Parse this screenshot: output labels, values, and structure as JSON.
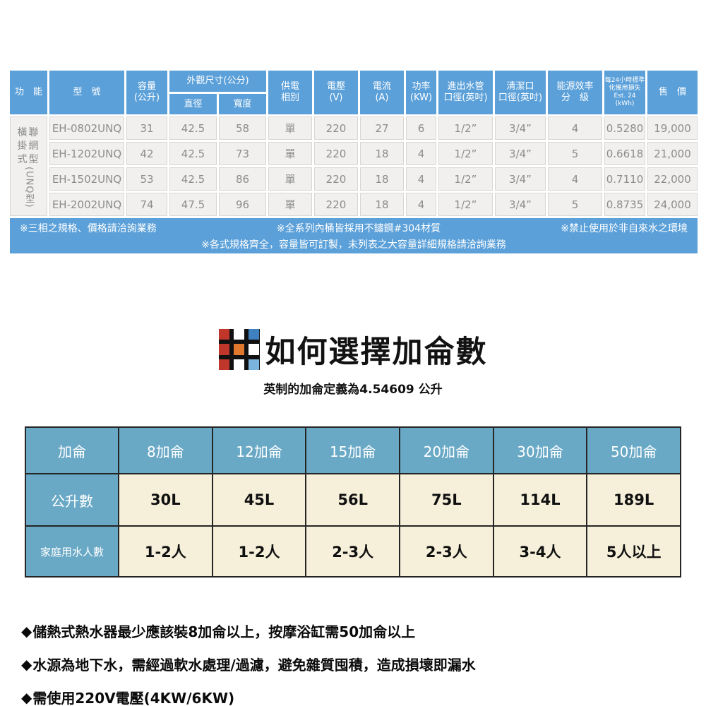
{
  "colors": {
    "spec_header_blue": "#5ba0d9",
    "spec_cell_bg": "#f1f0ef",
    "spec_text_gray": "#8c8c8c",
    "gallon_header_blue": "#6aa9c6",
    "gallon_cell_cream": "#f6f0da",
    "logo_red": "#c0362b",
    "logo_orange": "#e0792e",
    "logo_blue": "#3f80c0",
    "logo_light_blue": "#7ab4de"
  },
  "spec_table": {
    "header": {
      "function": "功　能",
      "model": "型　號",
      "capacity_l1": "容量",
      "capacity_l2": "(公升)",
      "dims": "外觀尺寸(公分)",
      "diameter": "直徑",
      "width": "寬度",
      "phase_l1": "供電",
      "phase_l2": "相別",
      "voltage_l1": "電壓",
      "voltage_l2": "(V)",
      "current_l1": "電流",
      "current_l2": "(A)",
      "power_l1": "功率",
      "power_l2": "(KW)",
      "inlet_l1": "進出水管",
      "inlet_l2": "口徑(英吋)",
      "clean_l1": "清潔口",
      "clean_l2": "口徑(英吋)",
      "energy_l1": "能源效率",
      "energy_l2": "分　級",
      "standby_l1": "每24小時標準",
      "standby_l2": "化備用損失",
      "standby_l3": "Est. 24 (kWh)",
      "price": "售　價"
    },
    "function_type": {
      "l1": "橫聯",
      "l2": "掛網",
      "l3": "式型",
      "vertical": "(UNQ型)"
    },
    "rows": [
      {
        "model": "EH-0802UNQ",
        "capacity": "31",
        "diameter": "42.5",
        "width": "58",
        "phase": "單",
        "voltage": "220",
        "current": "27",
        "power": "6",
        "inlet": "1/2”",
        "clean": "3/4”",
        "energy": "4",
        "standby": "0.5280",
        "price": "19,000"
      },
      {
        "model": "EH-1202UNQ",
        "capacity": "42",
        "diameter": "42.5",
        "width": "73",
        "phase": "單",
        "voltage": "220",
        "current": "18",
        "power": "4",
        "inlet": "1/2”",
        "clean": "3/4”",
        "energy": "5",
        "standby": "0.6618",
        "price": "21,000"
      },
      {
        "model": "EH-1502UNQ",
        "capacity": "53",
        "diameter": "42.5",
        "width": "86",
        "phase": "單",
        "voltage": "220",
        "current": "18",
        "power": "4",
        "inlet": "1/2”",
        "clean": "3/4”",
        "energy": "4",
        "standby": "0.7110",
        "price": "22,000"
      },
      {
        "model": "EH-2002UNQ",
        "capacity": "74",
        "diameter": "47.5",
        "width": "96",
        "phase": "單",
        "voltage": "220",
        "current": "18",
        "power": "4",
        "inlet": "1/2”",
        "clean": "3/4”",
        "energy": "5",
        "standby": "0.8735",
        "price": "24,000"
      }
    ],
    "notes": {
      "line1_left": "※三相之規格、價格請洽詢業務",
      "line1_mid": "※全系列內桶皆採用不鏽鋼#304材質",
      "line1_right": "※禁止使用於非自來水之環境",
      "line2": "※各式規格齊全，容量皆可訂製，未列表之大容量詳細規格請洽詢業務"
    }
  },
  "gallon_section": {
    "title": "如何選擇加侖數",
    "subtitle": "英制的加侖定義為4.54609 公升",
    "table": {
      "corner": "加侖",
      "liters_label": "公升數",
      "people_label": "家庭用水人數",
      "columns": [
        {
          "gallon": "8加侖",
          "liters": "30L",
          "people": "1-2人"
        },
        {
          "gallon": "12加侖",
          "liters": "45L",
          "people": "1-2人"
        },
        {
          "gallon": "15加侖",
          "liters": "56L",
          "people": "2-3人"
        },
        {
          "gallon": "20加侖",
          "liters": "75L",
          "people": "2-3人"
        },
        {
          "gallon": "30加侖",
          "liters": "114L",
          "people": "3-4人"
        },
        {
          "gallon": "50加侖",
          "liters": "189L",
          "people": "5人以上"
        }
      ]
    }
  },
  "footnotes": {
    "bullet": "◆",
    "items": [
      "儲熱式熱水器最少應該裝8加侖以上，按摩浴缸需50加侖以上",
      "水源為地下水，需經過軟水處理/過濾，避免雜質囤積，造成損壞即漏水",
      "需使用220V電壓(4KW/6KW)"
    ]
  }
}
